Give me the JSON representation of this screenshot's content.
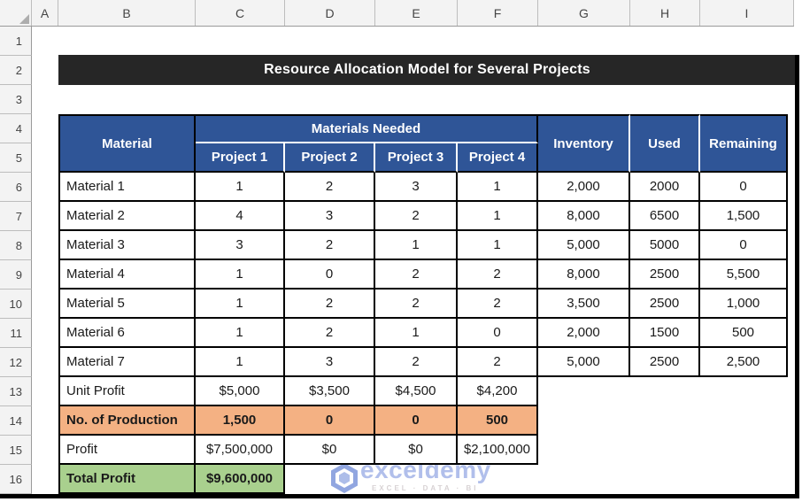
{
  "title": "Resource Allocation Model for Several Projects",
  "excel": {
    "column_headers": [
      "",
      "A",
      "B",
      "C",
      "D",
      "E",
      "F",
      "G",
      "H",
      "I"
    ],
    "row_headers": [
      "1",
      "2",
      "3",
      "4",
      "5",
      "6",
      "7",
      "8",
      "9",
      "10",
      "11",
      "12",
      "13",
      "14",
      "15",
      "16"
    ]
  },
  "table": {
    "header": {
      "material": "Material",
      "materials_needed": "Materials Needed",
      "projects": [
        "Project 1",
        "Project 2",
        "Project 3",
        "Project 4"
      ],
      "inventory": "Inventory",
      "used": "Used",
      "remaining": "Remaining"
    },
    "materials": [
      {
        "name": "Material 1",
        "projects": [
          "1",
          "2",
          "3",
          "1"
        ],
        "inventory": "2,000",
        "used": "2000",
        "remaining": "0"
      },
      {
        "name": "Material 2",
        "projects": [
          "4",
          "3",
          "2",
          "1"
        ],
        "inventory": "8,000",
        "used": "6500",
        "remaining": "1,500"
      },
      {
        "name": "Material 3",
        "projects": [
          "3",
          "2",
          "1",
          "1"
        ],
        "inventory": "5,000",
        "used": "5000",
        "remaining": "0"
      },
      {
        "name": "Material 4",
        "projects": [
          "1",
          "0",
          "2",
          "2"
        ],
        "inventory": "8,000",
        "used": "2500",
        "remaining": "5,500"
      },
      {
        "name": "Material 5",
        "projects": [
          "1",
          "2",
          "2",
          "2"
        ],
        "inventory": "3,500",
        "used": "2500",
        "remaining": "1,000"
      },
      {
        "name": "Material 6",
        "projects": [
          "1",
          "2",
          "1",
          "0"
        ],
        "inventory": "2,000",
        "used": "1500",
        "remaining": "500"
      },
      {
        "name": "Material 7",
        "projects": [
          "1",
          "3",
          "2",
          "2"
        ],
        "inventory": "5,000",
        "used": "2500",
        "remaining": "2,500"
      }
    ],
    "unit_profit": {
      "label": "Unit Profit",
      "values": [
        "$5,000",
        "$3,500",
        "$4,500",
        "$4,200"
      ]
    },
    "production": {
      "label": "No. of Production",
      "values": [
        "1,500",
        "0",
        "0",
        "500"
      ]
    },
    "profit": {
      "label": "Profit",
      "values": [
        "$7,500,000",
        "$0",
        "$0",
        "$2,100,000"
      ]
    },
    "total_profit": {
      "label": "Total Profit",
      "value": "$9,600,000"
    }
  },
  "watermark": {
    "brand": "exceldemy",
    "tagline": "EXCEL · DATA · BI"
  },
  "colors": {
    "header_blue": "#2F5597",
    "production_orange": "#F4B183",
    "total_green": "#A9D08E",
    "banner_black": "#262626"
  }
}
